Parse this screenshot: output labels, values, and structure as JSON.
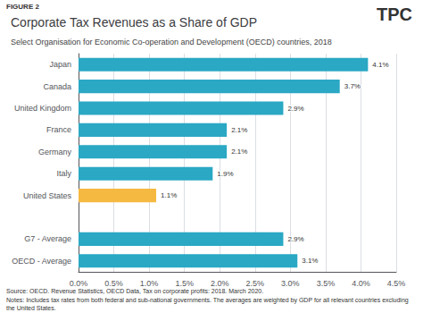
{
  "chart_data": {
    "type": "bar",
    "orientation": "horizontal",
    "title": "Corporate Tax Revenues as a Share of GDP",
    "subtitle": "Select Organisation for Economic Co-operation and Development (OECD) countries, 2018",
    "categories": [
      "OECD - Average",
      "G7 - Average",
      null,
      "United States",
      "Italy",
      "Germany",
      "France",
      "United Kingdom",
      "Canada",
      "Japan"
    ],
    "values": [
      3.1,
      2.9,
      0,
      1.1,
      1.9,
      2.1,
      2.1,
      2.9,
      3.7,
      4.1
    ],
    "value_labels": [
      "3.1%",
      "2.9%",
      null,
      "1.1%",
      "1.9%",
      "2.1%",
      "2.1%",
      "2.9%",
      "3.7%",
      "4.1%"
    ],
    "data_labels": true,
    "colors": [
      "#2aa8c4",
      "#2aa8c4",
      "#f0efee",
      "#f5b942",
      "#2aa8c4",
      "#2aa8c4",
      "#2aa8c4",
      "#2aa8c4",
      "#2aa8c4",
      "#2aa8c4"
    ],
    "xlim": [
      0,
      4.5
    ],
    "xticks": [
      {
        "value": 0,
        "label": "0.0%"
      },
      {
        "value": 0.5,
        "label": "0.5%"
      },
      {
        "value": 1,
        "label": "1.0%"
      },
      {
        "value": 1.5,
        "label": "1.5%"
      },
      {
        "value": 2,
        "label": "2.0%"
      },
      {
        "value": 2.5,
        "label": "2.5%"
      },
      {
        "value": 3,
        "label": "3.0%"
      },
      {
        "value": 3.5,
        "label": "3.5%"
      },
      {
        "value": 4,
        "label": "4.0%"
      },
      {
        "value": 4.5,
        "label": "4.5%"
      }
    ],
    "grid": true,
    "annotations": [
      "FIGURE 2",
      "Source: OECD. Revenue Statistics, OECD Data, Tax on corporate profits: 2018. March 2020.",
      "Notes: Includes tax rates from both federal and sub-national governments. The averages are weighted by GDP for all relevant countries excluding\nthe United States.",
      "TPC"
    ]
  }
}
